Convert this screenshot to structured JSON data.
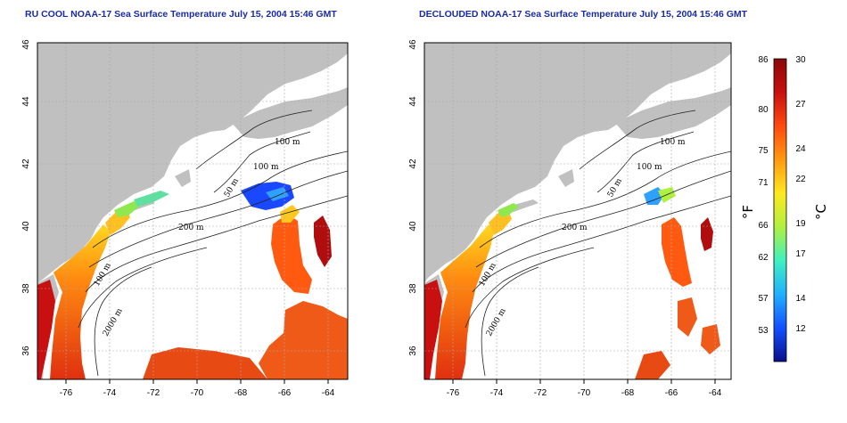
{
  "titles": {
    "left": "RU COOL NOAA-17 Sea Surface Temperature July 15, 2004 15:46 GMT",
    "right": "DECLOUDED NOAA-17 Sea Surface Temperature July 15, 2004 15:46 GMT"
  },
  "axes": {
    "x_ticks": [
      "-76",
      "-74",
      "-72",
      "-70",
      "-68",
      "-66",
      "-64"
    ],
    "y_ticks": [
      "36",
      "38",
      "40",
      "42",
      "44",
      "46"
    ]
  },
  "contour_labels": {
    "left": [
      "100 m",
      "100 m",
      "50 m",
      "200 m",
      "100 m",
      "2000 m"
    ],
    "right": [
      "100 m",
      "100 m",
      "50 m",
      "200 m",
      "100 m",
      "2000 m"
    ]
  },
  "colorbar": {
    "fahrenheit_ticks": [
      "86",
      "80",
      "75",
      "71",
      "66",
      "62",
      "57",
      "53"
    ],
    "celsius_ticks": [
      "30",
      "27",
      "24",
      "22",
      "19",
      "17",
      "14",
      "12"
    ],
    "fahrenheit_unit": "°F",
    "celsius_unit": "°C",
    "colors": [
      "#0a0f8a",
      "#1450ff",
      "#20b0ff",
      "#40f0c0",
      "#b0f040",
      "#ffe820",
      "#ff9a10",
      "#ff4a10",
      "#c81010",
      "#8a0808"
    ]
  },
  "colors": {
    "land": "#c0c0c0",
    "ocean": "#ffffff",
    "grid": "#a8a8a8"
  }
}
